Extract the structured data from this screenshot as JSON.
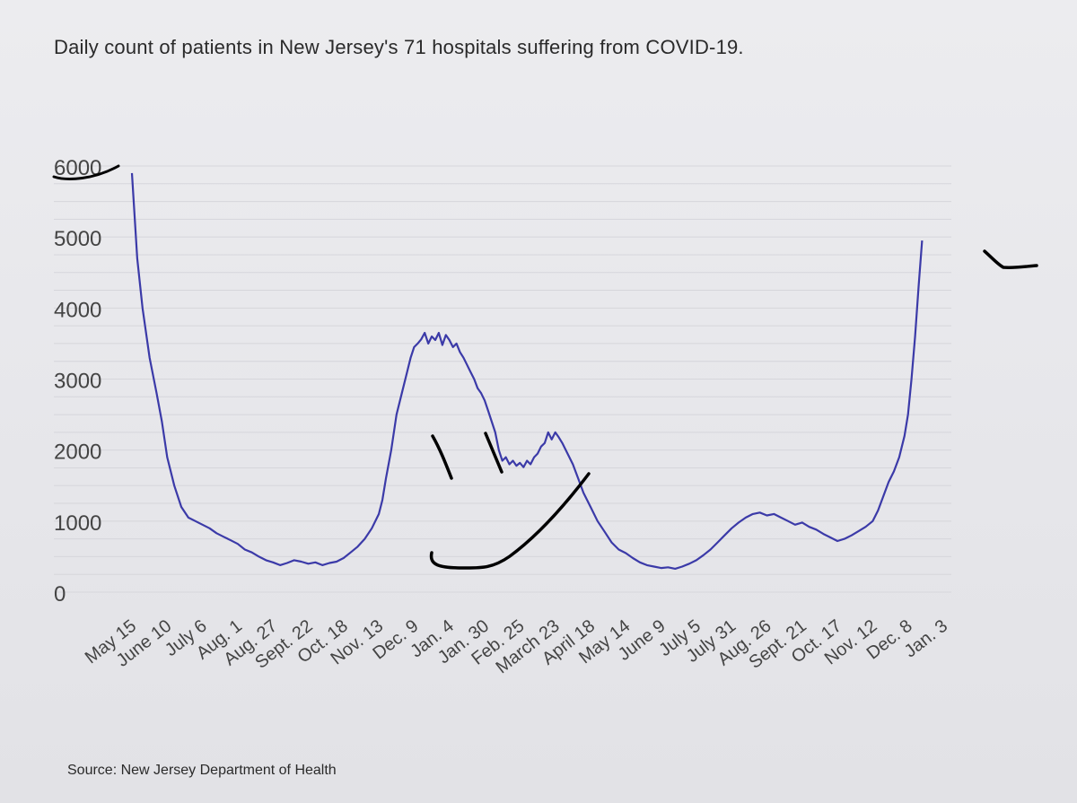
{
  "header": {
    "title": "Daily count of patients in New Jersey's 71 hospitals suffering from COVID-19."
  },
  "footer": {
    "source": "Source: New Jersey Department of Health"
  },
  "colors": {
    "line": "#3b3aa8",
    "ink": "#000000"
  },
  "chart_data": {
    "type": "line",
    "title": "Daily count of patients in New Jersey's 71 hospitals suffering from COVID-19.",
    "xlabel": "",
    "ylabel": "",
    "ylim": [
      0,
      6000
    ],
    "yticks": [
      0,
      1000,
      2000,
      3000,
      4000,
      5000,
      6000
    ],
    "grid": true,
    "categories": [
      "May 15",
      "June 10",
      "July 6",
      "Aug. 1",
      "Aug. 27",
      "Sept. 22",
      "Oct. 18",
      "Nov. 13",
      "Dec. 9",
      "Jan. 4",
      "Jan. 30",
      "Feb. 25",
      "March 23",
      "April 18",
      "May 14",
      "June 9",
      "July 5",
      "July 31",
      "Aug. 26",
      "Sept. 21",
      "Oct. 17",
      "Nov. 12",
      "Dec. 8",
      "Jan. 3"
    ],
    "series": [
      {
        "values": [
          [
            0,
            5900
          ],
          [
            0.15,
            4700
          ],
          [
            0.3,
            4000
          ],
          [
            0.5,
            3300
          ],
          [
            0.7,
            2800
          ],
          [
            0.85,
            2400
          ],
          [
            1.0,
            1900
          ],
          [
            1.2,
            1500
          ],
          [
            1.4,
            1200
          ],
          [
            1.6,
            1050
          ],
          [
            1.8,
            1000
          ],
          [
            2.0,
            950
          ],
          [
            2.2,
            900
          ],
          [
            2.4,
            830
          ],
          [
            2.6,
            780
          ],
          [
            2.8,
            730
          ],
          [
            3.0,
            680
          ],
          [
            3.2,
            600
          ],
          [
            3.4,
            560
          ],
          [
            3.6,
            500
          ],
          [
            3.8,
            450
          ],
          [
            4.0,
            420
          ],
          [
            4.2,
            380
          ],
          [
            4.4,
            410
          ],
          [
            4.6,
            450
          ],
          [
            4.8,
            430
          ],
          [
            5.0,
            400
          ],
          [
            5.2,
            420
          ],
          [
            5.4,
            380
          ],
          [
            5.6,
            410
          ],
          [
            5.8,
            430
          ],
          [
            6.0,
            480
          ],
          [
            6.2,
            560
          ],
          [
            6.4,
            640
          ],
          [
            6.6,
            750
          ],
          [
            6.8,
            900
          ],
          [
            7.0,
            1100
          ],
          [
            7.1,
            1300
          ],
          [
            7.2,
            1600
          ],
          [
            7.35,
            2000
          ],
          [
            7.5,
            2500
          ],
          [
            7.65,
            2800
          ],
          [
            7.8,
            3100
          ],
          [
            7.9,
            3300
          ],
          [
            8.0,
            3450
          ],
          [
            8.1,
            3500
          ],
          [
            8.2,
            3560
          ],
          [
            8.3,
            3650
          ],
          [
            8.4,
            3500
          ],
          [
            8.5,
            3600
          ],
          [
            8.6,
            3550
          ],
          [
            8.7,
            3650
          ],
          [
            8.8,
            3480
          ],
          [
            8.9,
            3620
          ],
          [
            9.0,
            3550
          ],
          [
            9.1,
            3450
          ],
          [
            9.2,
            3500
          ],
          [
            9.3,
            3380
          ],
          [
            9.4,
            3300
          ],
          [
            9.5,
            3200
          ],
          [
            9.6,
            3100
          ],
          [
            9.7,
            3000
          ],
          [
            9.8,
            2870
          ],
          [
            9.9,
            2800
          ],
          [
            10.0,
            2700
          ],
          [
            10.1,
            2550
          ],
          [
            10.2,
            2400
          ],
          [
            10.3,
            2250
          ],
          [
            10.4,
            2000
          ],
          [
            10.5,
            1850
          ],
          [
            10.6,
            1900
          ],
          [
            10.7,
            1800
          ],
          [
            10.8,
            1850
          ],
          [
            10.9,
            1780
          ],
          [
            11.0,
            1820
          ],
          [
            11.1,
            1760
          ],
          [
            11.2,
            1850
          ],
          [
            11.3,
            1800
          ],
          [
            11.4,
            1900
          ],
          [
            11.5,
            1950
          ],
          [
            11.6,
            2050
          ],
          [
            11.7,
            2100
          ],
          [
            11.8,
            2250
          ],
          [
            11.9,
            2150
          ],
          [
            12.0,
            2250
          ],
          [
            12.1,
            2180
          ],
          [
            12.2,
            2100
          ],
          [
            12.35,
            1950
          ],
          [
            12.5,
            1800
          ],
          [
            12.65,
            1600
          ],
          [
            12.8,
            1400
          ],
          [
            13.0,
            1200
          ],
          [
            13.2,
            1000
          ],
          [
            13.4,
            850
          ],
          [
            13.6,
            700
          ],
          [
            13.8,
            600
          ],
          [
            14.0,
            550
          ],
          [
            14.2,
            480
          ],
          [
            14.4,
            420
          ],
          [
            14.6,
            380
          ],
          [
            14.8,
            360
          ],
          [
            15.0,
            340
          ],
          [
            15.2,
            350
          ],
          [
            15.4,
            330
          ],
          [
            15.6,
            360
          ],
          [
            15.8,
            400
          ],
          [
            16.0,
            450
          ],
          [
            16.2,
            520
          ],
          [
            16.4,
            600
          ],
          [
            16.6,
            700
          ],
          [
            16.8,
            800
          ],
          [
            17.0,
            900
          ],
          [
            17.2,
            980
          ],
          [
            17.4,
            1050
          ],
          [
            17.6,
            1100
          ],
          [
            17.8,
            1120
          ],
          [
            18.0,
            1080
          ],
          [
            18.2,
            1100
          ],
          [
            18.4,
            1050
          ],
          [
            18.6,
            1000
          ],
          [
            18.8,
            950
          ],
          [
            19.0,
            980
          ],
          [
            19.2,
            920
          ],
          [
            19.4,
            880
          ],
          [
            19.6,
            820
          ],
          [
            19.8,
            770
          ],
          [
            20.0,
            720
          ],
          [
            20.2,
            750
          ],
          [
            20.4,
            800
          ],
          [
            20.6,
            860
          ],
          [
            20.8,
            920
          ],
          [
            21.0,
            1000
          ],
          [
            21.15,
            1150
          ],
          [
            21.3,
            1350
          ],
          [
            21.45,
            1550
          ],
          [
            21.6,
            1700
          ],
          [
            21.75,
            1900
          ],
          [
            21.9,
            2200
          ],
          [
            22.0,
            2500
          ],
          [
            22.1,
            3000
          ],
          [
            22.2,
            3600
          ],
          [
            22.3,
            4300
          ],
          [
            22.4,
            4950
          ]
        ]
      }
    ],
    "annotations": [
      "hand-drawn smiley face over the winter peak",
      "hand-drawn underline under the 6000 tick label",
      "hand-drawn check mark to the right of the final value"
    ]
  }
}
